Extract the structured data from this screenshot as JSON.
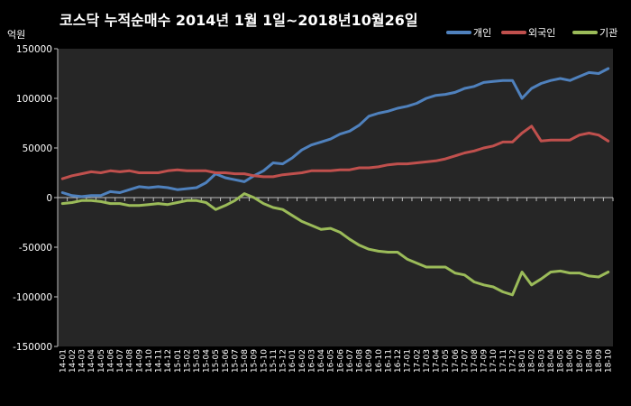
{
  "chart_data": {
    "type": "line",
    "title": "코스닥 누적순매수 2014년 1월 1일~2018년10월26일",
    "ylabel": "억원",
    "ylim": [
      -150000,
      150000
    ],
    "yticks": [
      150000,
      100000,
      50000,
      0,
      -50000,
      -100000,
      -150000
    ],
    "ytick_labels": [
      "150000",
      "100000",
      "50000",
      "0",
      "-50000",
      "-100000",
      "-150000"
    ],
    "grid": false,
    "legend_position": "top-right",
    "categories": [
      "14-01",
      "14-02",
      "14-03",
      "14-04",
      "14-05",
      "14-06",
      "14-07",
      "14-08",
      "14-09",
      "14-10",
      "14-11",
      "14-12",
      "15-01",
      "15-02",
      "15-03",
      "15-04",
      "15-05",
      "15-06",
      "15-07",
      "15-08",
      "15-09",
      "15-10",
      "15-11",
      "15-12",
      "16-01",
      "16-02",
      "16-03",
      "16-04",
      "16-05",
      "16-06",
      "16-07",
      "16-08",
      "16-09",
      "16-10",
      "16-11",
      "16-12",
      "17-01",
      "17-02",
      "17-03",
      "17-04",
      "17-05",
      "17-06",
      "17-07",
      "17-08",
      "17-09",
      "17-10",
      "17-11",
      "17-12",
      "18-01",
      "18-02",
      "18-03",
      "18-04",
      "18-05",
      "18-06",
      "18-07",
      "18-08",
      "18-09",
      "18-10"
    ],
    "series": [
      {
        "name": "개인",
        "color": "#4f81bd",
        "values": [
          5000,
          2000,
          1000,
          2000,
          2000,
          6000,
          5000,
          8000,
          11000,
          10000,
          11000,
          10000,
          8000,
          9000,
          10000,
          15000,
          24000,
          20000,
          18000,
          16000,
          22000,
          27000,
          35000,
          34000,
          40000,
          48000,
          53000,
          56000,
          59000,
          64000,
          67000,
          73000,
          82000,
          85000,
          87000,
          90000,
          92000,
          95000,
          100000,
          103000,
          104000,
          106000,
          110000,
          112000,
          116000,
          117000,
          118000,
          118000,
          100000,
          110000,
          115000,
          118000,
          120000,
          118000,
          122000,
          126000,
          125000,
          130000
        ]
      },
      {
        "name": "외국인",
        "color": "#c0504d",
        "values": [
          19000,
          22000,
          24000,
          26000,
          25000,
          27000,
          26000,
          27000,
          25000,
          25000,
          25000,
          27000,
          28000,
          27000,
          27000,
          27000,
          25000,
          25000,
          24000,
          24000,
          22000,
          21000,
          21000,
          23000,
          24000,
          25000,
          27000,
          27000,
          27000,
          28000,
          28000,
          30000,
          30000,
          31000,
          33000,
          34000,
          34000,
          35000,
          36000,
          37000,
          39000,
          42000,
          45000,
          47000,
          50000,
          52000,
          56000,
          56000,
          65000,
          72000,
          57000,
          58000,
          58000,
          58000,
          63000,
          65000,
          63000,
          57000
        ]
      },
      {
        "name": "기관",
        "color": "#9bbb59",
        "values": [
          -6000,
          -5000,
          -3000,
          -3000,
          -4000,
          -6000,
          -6000,
          -8000,
          -8000,
          -7000,
          -6000,
          -7000,
          -5000,
          -3000,
          -3000,
          -5000,
          -12000,
          -8000,
          -3000,
          4000,
          0,
          -6000,
          -10000,
          -12000,
          -18000,
          -24000,
          -28000,
          -32000,
          -31000,
          -35000,
          -42000,
          -48000,
          -52000,
          -54000,
          -55000,
          -55000,
          -62000,
          -66000,
          -70000,
          -70000,
          -70000,
          -76000,
          -78000,
          -85000,
          -88000,
          -90000,
          -95000,
          -98000,
          -75000,
          -88000,
          -82000,
          -75000,
          -74000,
          -76000,
          -76000,
          -79000,
          -80000,
          -75000
        ]
      }
    ]
  }
}
